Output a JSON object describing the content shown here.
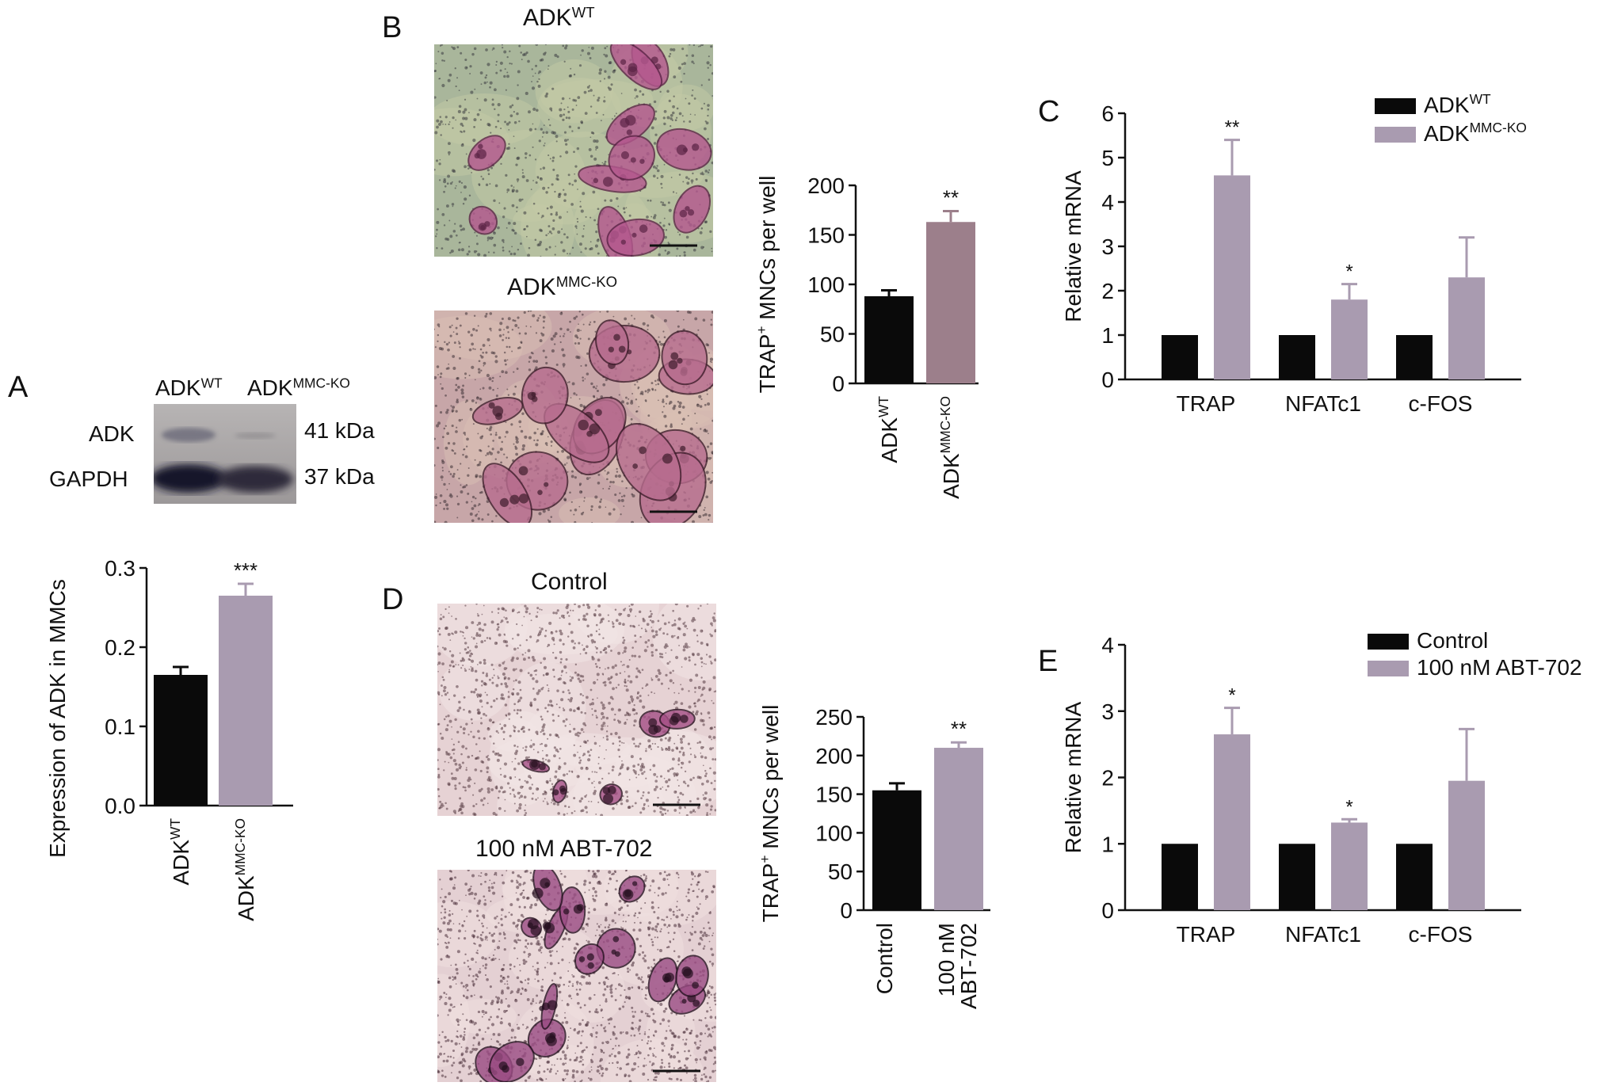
{
  "figure": {
    "panels": {
      "a": "A",
      "b": "B",
      "c": "C",
      "d": "D",
      "e": "E"
    },
    "colors": {
      "wt": "#0a0a0a",
      "ko": "#a99bb0",
      "ko_b": "#9c7f8b",
      "axis": "#111111"
    }
  },
  "blot": {
    "lane_labels": [
      {
        "base": "ADK",
        "sup": "WT"
      },
      {
        "base": "ADK",
        "sup": "MMC-KO"
      }
    ],
    "rows": [
      {
        "protein": "ADK",
        "size": "41 kDa"
      },
      {
        "protein": "GAPDH",
        "size": "37 kDa"
      }
    ]
  },
  "micrographs": {
    "b_top_caption": {
      "base": "ADK",
      "sup": "WT"
    },
    "b_bottom_caption": {
      "base": "ADK",
      "sup": "MMC-KO"
    },
    "d_top_caption": "Control",
    "d_bottom_caption": "100 nM ABT-702"
  },
  "chart_data": [
    {
      "id": "A",
      "type": "bar",
      "categories": [
        {
          "base": "ADK",
          "sup": "WT"
        },
        {
          "base": "ADK",
          "sup": "MMC-KO"
        }
      ],
      "values": [
        0.165,
        0.265
      ],
      "errors": [
        0.01,
        0.015
      ],
      "significance": [
        "",
        "***"
      ],
      "colors": [
        "#0a0a0a",
        "#a99bb0"
      ],
      "ylabel": "Expression of ADK in MMCs",
      "ylim": [
        0,
        0.3
      ],
      "yticks": [
        "0.0",
        "0.1",
        "0.2",
        "0.3"
      ]
    },
    {
      "id": "B",
      "type": "bar",
      "categories": [
        {
          "base": "ADK",
          "sup": "WT"
        },
        {
          "base": "ADK",
          "sup": "MMC-KO"
        }
      ],
      "values": [
        88,
        163
      ],
      "errors": [
        6,
        11
      ],
      "significance": [
        "",
        "**"
      ],
      "colors": [
        "#0a0a0a",
        "#9c7f8b"
      ],
      "ylabel": {
        "pre": "TRAP",
        "sup": "+",
        "post": " MNCs per well"
      },
      "ylim": [
        0,
        200
      ],
      "yticks": [
        "0",
        "50",
        "100",
        "150",
        "200"
      ]
    },
    {
      "id": "C",
      "type": "bar",
      "categories": [
        "TRAP",
        "NFATc1",
        "c-FOS"
      ],
      "series": [
        {
          "name": {
            "base": "ADK",
            "sup": "WT"
          },
          "values": [
            1,
            1,
            1
          ],
          "errors": [
            0,
            0,
            0
          ],
          "significance": [
            "",
            "",
            ""
          ]
        },
        {
          "name": {
            "base": "ADK",
            "sup": "MMC-KO"
          },
          "values": [
            4.6,
            1.8,
            2.3
          ],
          "errors": [
            0.8,
            0.35,
            0.9
          ],
          "significance": [
            "**",
            "*",
            ""
          ]
        }
      ],
      "colors": [
        "#0a0a0a",
        "#a99bb0"
      ],
      "ylabel": "Relative mRNA",
      "ylim": [
        0,
        6
      ],
      "yticks": [
        "0",
        "1",
        "2",
        "3",
        "4",
        "5",
        "6"
      ],
      "legend": "top-right"
    },
    {
      "id": "D",
      "type": "bar",
      "categories": [
        {
          "lines": [
            "Control"
          ]
        },
        {
          "lines": [
            "100 nM",
            "ABT-702"
          ]
        }
      ],
      "values": [
        155,
        210
      ],
      "errors": [
        9,
        7
      ],
      "significance": [
        "",
        "**"
      ],
      "colors": [
        "#0a0a0a",
        "#a99bb0"
      ],
      "ylabel": {
        "pre": "TRAP",
        "sup": "+",
        "post": " MNCs per well"
      },
      "ylim": [
        0,
        250
      ],
      "yticks": [
        "0",
        "50",
        "100",
        "150",
        "200",
        "250"
      ]
    },
    {
      "id": "E",
      "type": "bar",
      "categories": [
        "TRAP",
        "NFATc1",
        "c-FOS"
      ],
      "series": [
        {
          "name": "Control",
          "values": [
            1,
            1,
            1
          ],
          "errors": [
            0,
            0,
            0
          ],
          "significance": [
            "",
            "",
            ""
          ]
        },
        {
          "name": "100 nM ABT-702",
          "values": [
            2.65,
            1.32,
            1.95
          ],
          "errors": [
            0.4,
            0.05,
            0.78
          ],
          "significance": [
            "*",
            "*",
            ""
          ]
        }
      ],
      "colors": [
        "#0a0a0a",
        "#a99bb0"
      ],
      "ylabel": "Relative mRNA",
      "ylim": [
        0,
        4
      ],
      "yticks": [
        "0",
        "1",
        "2",
        "3",
        "4"
      ],
      "legend": "top-right"
    }
  ]
}
